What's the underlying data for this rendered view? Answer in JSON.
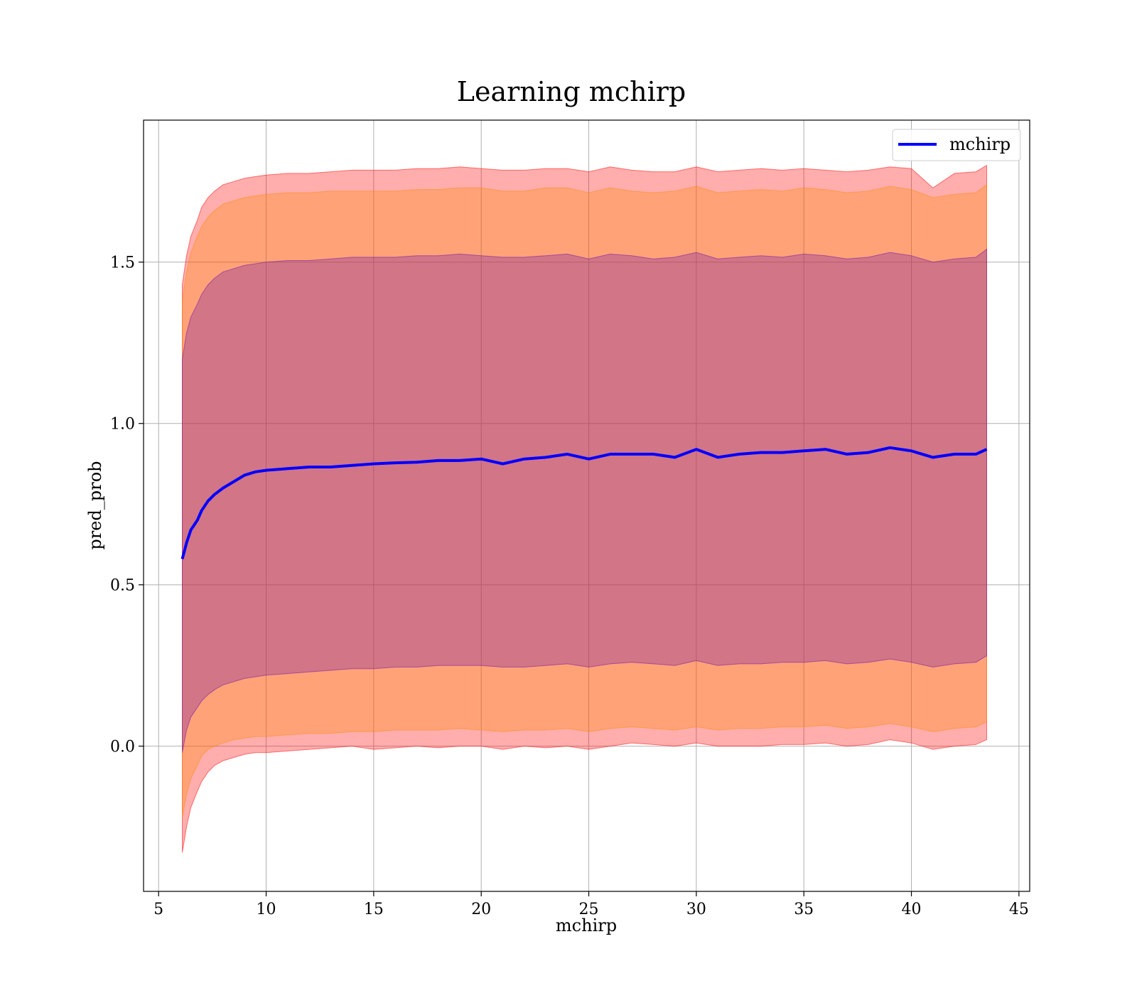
{
  "chart_data": {
    "type": "line",
    "title": "Learning mchirp",
    "xlabel": "mchirp",
    "ylabel": "pred_prob",
    "xlim": [
      4.3,
      45.5
    ],
    "ylim": [
      -0.45,
      1.94
    ],
    "xticks": [
      5,
      10,
      15,
      20,
      25,
      30,
      35,
      40,
      45
    ],
    "yticks": [
      0.0,
      0.5,
      1.0,
      1.5
    ],
    "xtick_labels": [
      "5",
      "10",
      "15",
      "20",
      "25",
      "30",
      "35",
      "40",
      "45"
    ],
    "ytick_labels": [
      "0.0",
      "0.5",
      "1.0",
      "1.5"
    ],
    "grid": true,
    "legend": {
      "position": "top-right",
      "entries": [
        "mchirp"
      ]
    },
    "x": [
      6.1,
      6.3,
      6.5,
      6.8,
      7.0,
      7.3,
      7.6,
      8.0,
      8.5,
      9.0,
      9.5,
      10.0,
      11,
      12,
      13,
      14,
      15,
      16,
      17,
      18,
      19,
      20,
      21,
      22,
      23,
      24,
      25,
      26,
      27,
      28,
      29,
      30,
      31,
      32,
      33,
      34,
      35,
      36,
      37,
      38,
      39,
      40,
      41,
      42,
      43,
      43.5
    ],
    "series": [
      {
        "name": "mchirp",
        "color": "#0000ff",
        "values": [
          0.58,
          0.63,
          0.67,
          0.7,
          0.73,
          0.76,
          0.78,
          0.8,
          0.82,
          0.84,
          0.85,
          0.855,
          0.86,
          0.865,
          0.865,
          0.87,
          0.875,
          0.878,
          0.88,
          0.885,
          0.885,
          0.89,
          0.875,
          0.89,
          0.895,
          0.905,
          0.89,
          0.905,
          0.905,
          0.905,
          0.895,
          0.92,
          0.895,
          0.905,
          0.91,
          0.91,
          0.915,
          0.92,
          0.905,
          0.91,
          0.925,
          0.915,
          0.895,
          0.905,
          0.905,
          0.92
        ]
      }
    ],
    "bands": [
      {
        "color": "#ff0000",
        "opacity": 0.32,
        "upper": [
          1.43,
          1.52,
          1.58,
          1.63,
          1.67,
          1.7,
          1.72,
          1.74,
          1.75,
          1.76,
          1.765,
          1.77,
          1.775,
          1.775,
          1.78,
          1.785,
          1.785,
          1.785,
          1.79,
          1.79,
          1.795,
          1.79,
          1.785,
          1.785,
          1.79,
          1.79,
          1.78,
          1.795,
          1.785,
          1.78,
          1.78,
          1.795,
          1.78,
          1.785,
          1.79,
          1.785,
          1.79,
          1.785,
          1.78,
          1.785,
          1.795,
          1.79,
          1.73,
          1.775,
          1.78,
          1.8
        ],
        "lower": [
          -0.33,
          -0.25,
          -0.19,
          -0.14,
          -0.11,
          -0.08,
          -0.06,
          -0.045,
          -0.035,
          -0.025,
          -0.02,
          -0.02,
          -0.015,
          -0.01,
          -0.005,
          0.0,
          -0.01,
          -0.005,
          0.0,
          -0.005,
          0.0,
          0.0,
          -0.01,
          0.0,
          -0.005,
          0.0,
          -0.01,
          0.0,
          0.01,
          0.005,
          0.0,
          0.01,
          0.0,
          0.0,
          0.0,
          0.005,
          0.005,
          0.01,
          0.0,
          0.005,
          0.02,
          0.01,
          -0.01,
          0.0,
          0.005,
          0.02
        ]
      },
      {
        "color": "#ff8c00",
        "opacity": 0.3,
        "upper": [
          1.38,
          1.47,
          1.53,
          1.58,
          1.61,
          1.64,
          1.66,
          1.68,
          1.69,
          1.7,
          1.705,
          1.71,
          1.715,
          1.715,
          1.72,
          1.72,
          1.72,
          1.72,
          1.725,
          1.725,
          1.73,
          1.73,
          1.72,
          1.72,
          1.73,
          1.73,
          1.715,
          1.73,
          1.72,
          1.715,
          1.72,
          1.735,
          1.715,
          1.72,
          1.725,
          1.72,
          1.73,
          1.725,
          1.715,
          1.72,
          1.735,
          1.725,
          1.7,
          1.71,
          1.715,
          1.74
        ],
        "lower": [
          -0.22,
          -0.15,
          -0.1,
          -0.06,
          -0.03,
          -0.01,
          0.0,
          0.01,
          0.02,
          0.025,
          0.03,
          0.03,
          0.035,
          0.04,
          0.04,
          0.045,
          0.045,
          0.05,
          0.05,
          0.05,
          0.055,
          0.05,
          0.045,
          0.05,
          0.05,
          0.055,
          0.045,
          0.055,
          0.06,
          0.055,
          0.05,
          0.06,
          0.05,
          0.055,
          0.055,
          0.06,
          0.06,
          0.065,
          0.055,
          0.06,
          0.07,
          0.06,
          0.045,
          0.055,
          0.06,
          0.075
        ]
      },
      {
        "color": "#6a0dad",
        "opacity": 0.3,
        "upper": [
          1.2,
          1.28,
          1.33,
          1.37,
          1.4,
          1.43,
          1.45,
          1.47,
          1.48,
          1.49,
          1.495,
          1.5,
          1.505,
          1.505,
          1.51,
          1.515,
          1.515,
          1.515,
          1.52,
          1.52,
          1.525,
          1.52,
          1.515,
          1.515,
          1.52,
          1.525,
          1.51,
          1.525,
          1.52,
          1.51,
          1.515,
          1.53,
          1.51,
          1.515,
          1.52,
          1.515,
          1.525,
          1.52,
          1.51,
          1.515,
          1.53,
          1.52,
          1.5,
          1.51,
          1.515,
          1.54
        ],
        "lower": [
          -0.02,
          0.05,
          0.09,
          0.12,
          0.14,
          0.16,
          0.175,
          0.19,
          0.2,
          0.21,
          0.215,
          0.22,
          0.225,
          0.23,
          0.235,
          0.24,
          0.24,
          0.245,
          0.245,
          0.25,
          0.25,
          0.25,
          0.245,
          0.245,
          0.25,
          0.255,
          0.245,
          0.255,
          0.26,
          0.255,
          0.25,
          0.265,
          0.25,
          0.255,
          0.255,
          0.26,
          0.26,
          0.265,
          0.255,
          0.26,
          0.27,
          0.26,
          0.245,
          0.255,
          0.26,
          0.28
        ]
      }
    ]
  }
}
